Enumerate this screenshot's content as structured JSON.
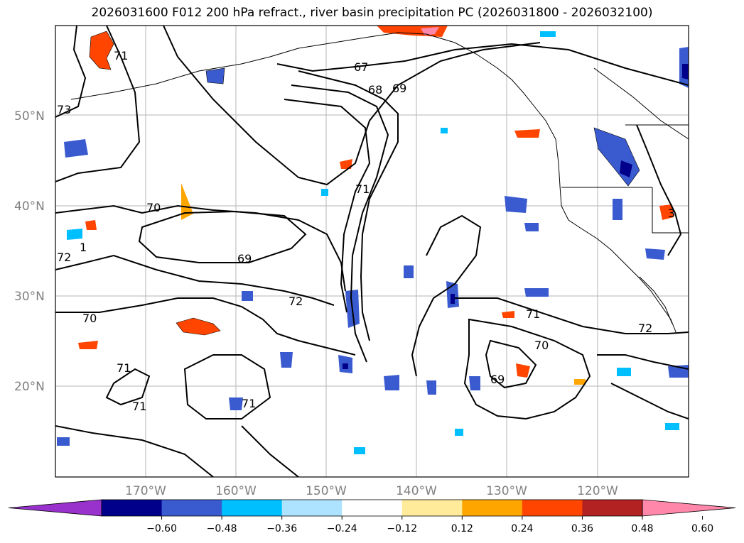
{
  "title": "2026031600 F012 200 hPa refract., river basin precipitation PC (2026031800 - 2026032100)",
  "map": {
    "lat_labels": [
      "50°N",
      "40°N",
      "30°N",
      "20°N"
    ],
    "lon_labels": [
      "170°W",
      "160°W",
      "150°W",
      "140°W",
      "130°W",
      "120°W"
    ],
    "contour_labels": [
      "67",
      "68",
      "69",
      "71",
      "71",
      "73",
      "70",
      "1",
      "72",
      "69",
      "70",
      "72",
      "71",
      "72",
      "70",
      "69",
      "71",
      "71",
      "71",
      "3"
    ]
  },
  "colorbar": {
    "colors": [
      "#9932cc",
      "#00008b",
      "#3a5bcf",
      "#00bfff",
      "#aee3ff",
      "#ffffff",
      "#ffeb99",
      "#ffa500",
      "#ff4500",
      "#b22222",
      "#ff88aa"
    ],
    "tick_labels": [
      "−0.60",
      "−0.48",
      "−0.36",
      "−0.24",
      "−0.12",
      "0.12",
      "0.24",
      "0.36",
      "0.48",
      "0.60"
    ]
  }
}
